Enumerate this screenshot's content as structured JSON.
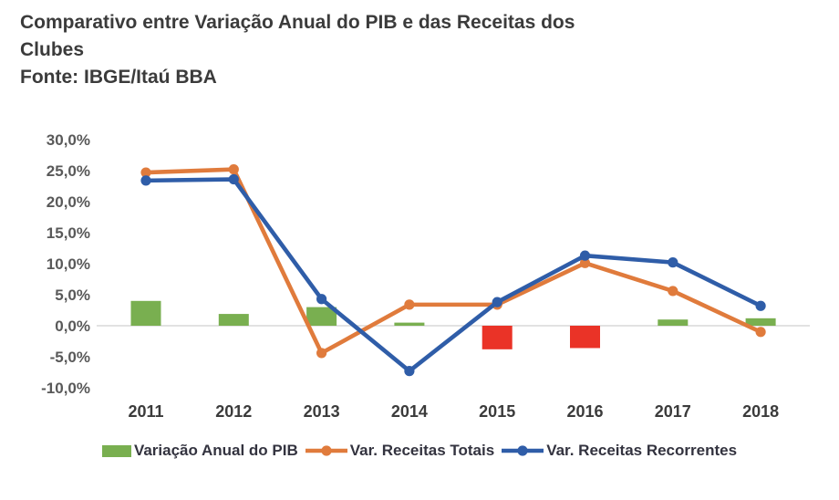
{
  "chart_data": {
    "type": "combo (bar + line)",
    "title": "Comparativo entre Variação Anual do PIB e das Receitas dos Clubes",
    "source": "Fonte: IBGE/Itaú BBA",
    "categories": [
      "2011",
      "2012",
      "2013",
      "2014",
      "2015",
      "2016",
      "2017",
      "2018"
    ],
    "series": [
      {
        "name": "Variação Anual do PIB",
        "type": "bar",
        "values": [
          4.0,
          1.9,
          3.0,
          0.5,
          -3.8,
          -3.6,
          1.0,
          1.2
        ],
        "positive_color": "#79AF50",
        "negative_color": "#EA3327"
      },
      {
        "name": "Var. Receitas Totais",
        "type": "line",
        "color": "#E07B3C",
        "values": [
          24.7,
          25.2,
          -4.4,
          3.4,
          3.4,
          10.1,
          5.6,
          -1.0
        ]
      },
      {
        "name": "Var. Receitas Recorrentes",
        "type": "line",
        "color": "#2F5DA8",
        "values": [
          23.4,
          23.6,
          4.3,
          -7.3,
          3.8,
          11.3,
          10.2,
          3.2
        ]
      }
    ],
    "y_axis": {
      "unit": "%",
      "min": -10,
      "max": 30,
      "tick_values": [
        30,
        25,
        20,
        15,
        10,
        5,
        0,
        -5,
        -10
      ],
      "tick_labels": [
        "30,0%",
        "25,0%",
        "20,0%",
        "15,0%",
        "10,0%",
        "5,0%",
        "0,0%",
        "-5,0%",
        "-10,0%"
      ]
    },
    "grid": "zero gridline only",
    "gridline_color": "#D9D9D9",
    "legend_position": "bottom"
  }
}
